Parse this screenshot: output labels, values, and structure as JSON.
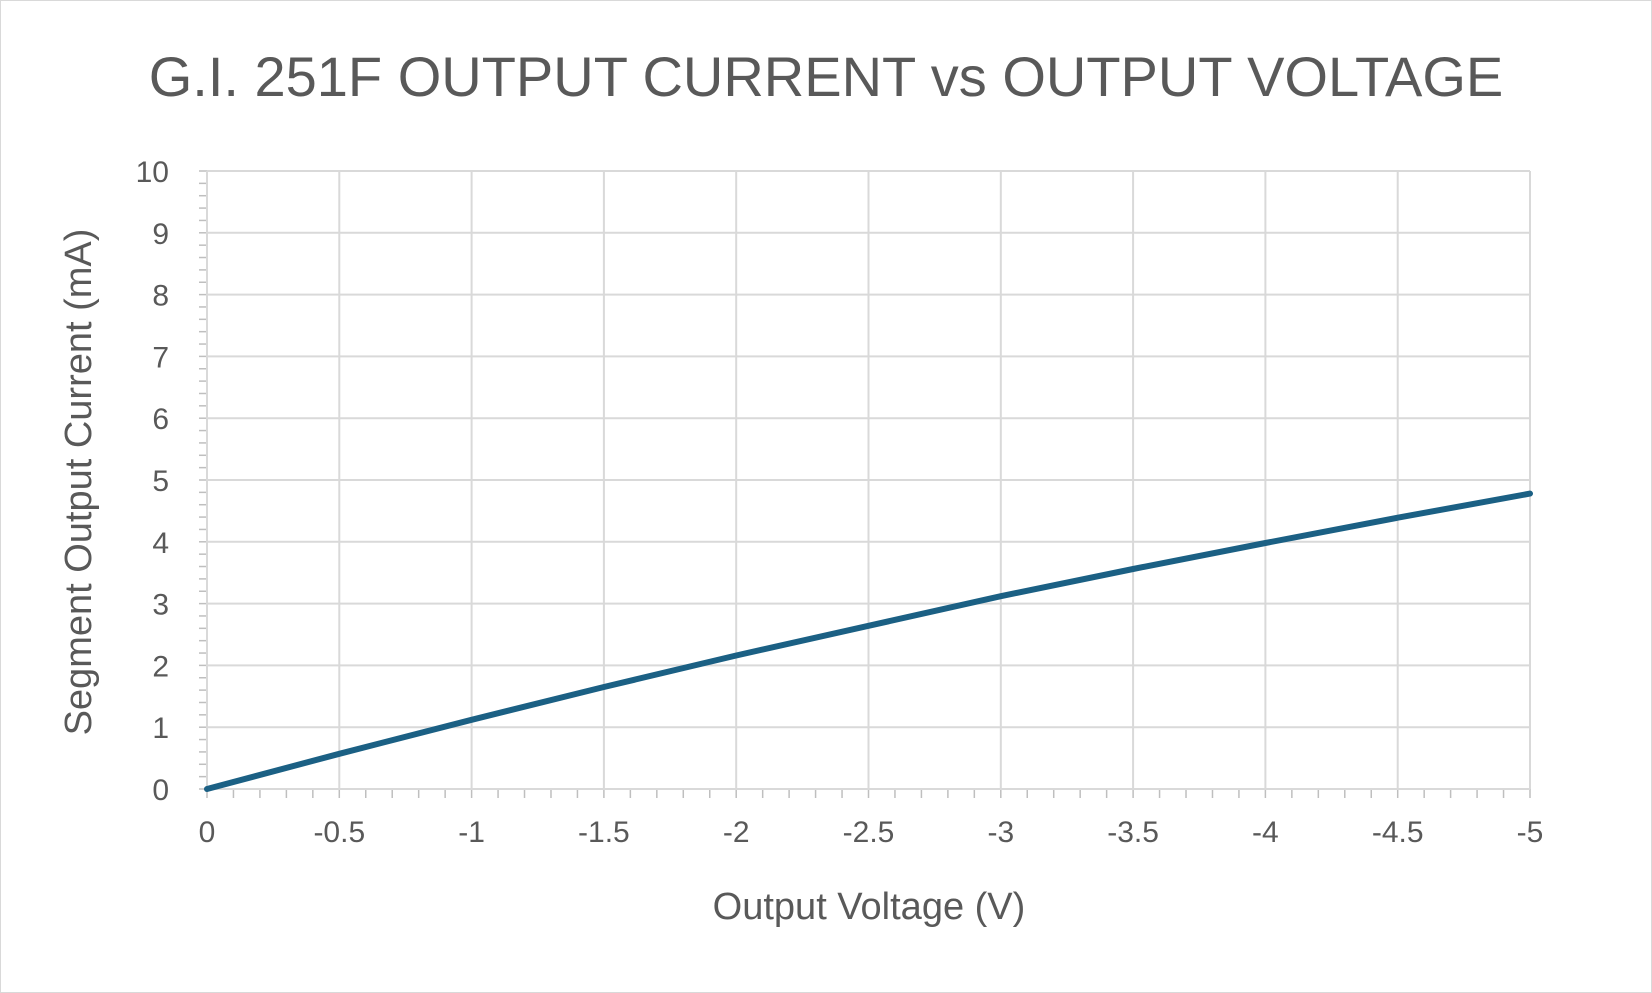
{
  "chart_data": {
    "type": "line",
    "title": "G.I. 251F OUTPUT CURRENT vs OUTPUT VOLTAGE",
    "xlabel": "Output Voltage (V)",
    "ylabel": "Segment Output Current (mA)",
    "xlim": [
      0,
      -5
    ],
    "ylim": [
      0,
      10
    ],
    "x_ticks": [
      0,
      -0.5,
      -1,
      -1.5,
      -2,
      -2.5,
      -3,
      -3.5,
      -4,
      -4.5,
      -5
    ],
    "x_tick_labels": [
      "0",
      "-0.5",
      "-1",
      "-1.5",
      "-2",
      "-2.5",
      "-3",
      "-3.5",
      "-4",
      "-4.5",
      "-5"
    ],
    "y_ticks": [
      0,
      1,
      2,
      3,
      4,
      5,
      6,
      7,
      8,
      9,
      10
    ],
    "y_tick_labels": [
      "0",
      "1",
      "2",
      "3",
      "4",
      "5",
      "6",
      "7",
      "8",
      "9",
      "10"
    ],
    "grid": true,
    "legend": "none",
    "series": [
      {
        "color": "#1b6084",
        "x": [
          0,
          -0.5,
          -1,
          -1.5,
          -2,
          -2.5,
          -3,
          -3.5,
          -4,
          -4.5,
          -5
        ],
        "y": [
          0,
          0.57,
          1.12,
          1.65,
          2.16,
          2.64,
          3.12,
          3.56,
          3.98,
          4.39,
          4.78
        ]
      }
    ]
  }
}
